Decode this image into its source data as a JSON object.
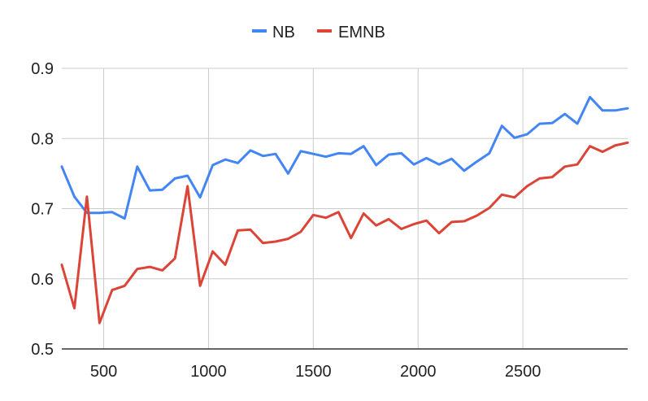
{
  "chart_data": {
    "type": "line",
    "legend_position": "top",
    "grid": true,
    "xlim": [
      300,
      3000
    ],
    "ylim": [
      0.5,
      0.9
    ],
    "x_ticks": [
      500,
      1000,
      1500,
      2000,
      2500
    ],
    "y_ticks": [
      0.5,
      0.6,
      0.7,
      0.8,
      0.9
    ],
    "x_tick_labels": [
      "500",
      "1000",
      "1500",
      "2000",
      "2500"
    ],
    "y_tick_labels": [
      "0.5",
      "0.6",
      "0.7",
      "0.8",
      "0.9"
    ],
    "x": [
      300,
      360,
      420,
      480,
      540,
      600,
      660,
      720,
      780,
      840,
      900,
      960,
      1020,
      1080,
      1140,
      1200,
      1260,
      1320,
      1380,
      1440,
      1500,
      1560,
      1620,
      1680,
      1740,
      1800,
      1860,
      1920,
      1980,
      2040,
      2100,
      2160,
      2220,
      2280,
      2340,
      2400,
      2460,
      2520,
      2580,
      2640,
      2700,
      2760,
      2820,
      2880,
      2940,
      3000
    ],
    "series": [
      {
        "name": "NB",
        "color": "#4285f4",
        "values": [
          0.76,
          0.717,
          0.694,
          0.694,
          0.695,
          0.686,
          0.76,
          0.726,
          0.727,
          0.743,
          0.747,
          0.716,
          0.762,
          0.77,
          0.765,
          0.783,
          0.775,
          0.778,
          0.75,
          0.782,
          0.778,
          0.774,
          0.779,
          0.778,
          0.789,
          0.762,
          0.777,
          0.779,
          0.763,
          0.772,
          0.763,
          0.771,
          0.754,
          0.767,
          0.779,
          0.818,
          0.801,
          0.806,
          0.821,
          0.822,
          0.835,
          0.821,
          0.859,
          0.84,
          0.84,
          0.843
        ]
      },
      {
        "name": "EMNB",
        "color": "#db4437",
        "values": [
          0.62,
          0.558,
          0.717,
          0.537,
          0.584,
          0.59,
          0.614,
          0.617,
          0.612,
          0.629,
          0.732,
          0.59,
          0.639,
          0.62,
          0.669,
          0.67,
          0.651,
          0.653,
          0.657,
          0.667,
          0.691,
          0.687,
          0.695,
          0.658,
          0.693,
          0.676,
          0.685,
          0.671,
          0.678,
          0.683,
          0.665,
          0.681,
          0.682,
          0.69,
          0.701,
          0.72,
          0.716,
          0.732,
          0.743,
          0.745,
          0.76,
          0.763,
          0.789,
          0.781,
          0.79,
          0.794
        ]
      }
    ]
  }
}
